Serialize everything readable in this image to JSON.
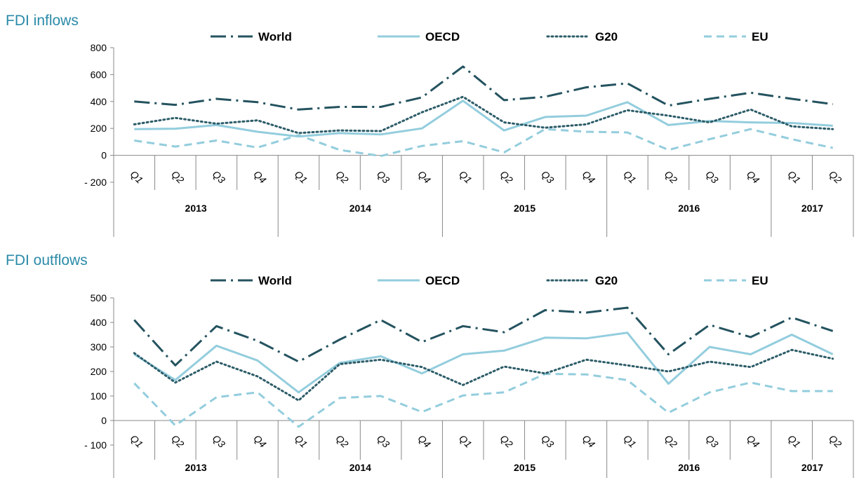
{
  "chart_data": [
    {
      "type": "line",
      "title": "FDI inflows",
      "xlabel": "",
      "ylabel": "",
      "ylim": [
        -200,
        800
      ],
      "yticks": [
        800,
        600,
        400,
        200,
        0,
        -200
      ],
      "ytick_labels": [
        "800",
        "600",
        "400",
        "200",
        "0",
        "- 200"
      ],
      "grid": false,
      "legend_position": "top",
      "categories": [
        "Q1",
        "Q2",
        "Q3",
        "Q4",
        "Q1",
        "Q2",
        "Q3",
        "Q4",
        "Q1",
        "Q2",
        "Q3",
        "Q4",
        "Q1",
        "Q2",
        "Q3",
        "Q4",
        "Q1",
        "Q2"
      ],
      "groups": [
        {
          "label": "2013",
          "count": 4
        },
        {
          "label": "2014",
          "count": 4
        },
        {
          "label": "2015",
          "count": 4
        },
        {
          "label": "2016",
          "count": 4
        },
        {
          "label": "2017",
          "count": 2
        }
      ],
      "series": [
        {
          "name": "World",
          "color": "#24535f",
          "style": "dash-dot",
          "values": [
            400,
            375,
            420,
            395,
            340,
            360,
            360,
            430,
            660,
            410,
            435,
            505,
            535,
            370,
            420,
            465,
            420,
            380
          ]
        },
        {
          "name": "OECD",
          "color": "#93cddd",
          "style": "solid",
          "values": [
            195,
            198,
            225,
            175,
            140,
            165,
            155,
            200,
            405,
            185,
            285,
            295,
            395,
            225,
            255,
            245,
            240,
            220
          ]
        },
        {
          "name": "G20",
          "color": "#2c5c68",
          "style": "dotted",
          "values": [
            230,
            278,
            235,
            260,
            165,
            185,
            180,
            320,
            435,
            245,
            205,
            230,
            335,
            295,
            245,
            340,
            215,
            195
          ]
        },
        {
          "name": "EU",
          "color": "#93cddd",
          "style": "dashed",
          "values": [
            110,
            65,
            110,
            58,
            150,
            40,
            -5,
            70,
            105,
            22,
            195,
            175,
            170,
            40,
            120,
            195,
            120,
            55
          ]
        }
      ]
    },
    {
      "type": "line",
      "title": "FDI outflows",
      "xlabel": "",
      "ylabel": "",
      "ylim": [
        -100,
        500
      ],
      "yticks": [
        500,
        400,
        300,
        200,
        100,
        0,
        -100
      ],
      "ytick_labels": [
        "500",
        "400",
        "300",
        "200",
        "100",
        "0",
        "- 100"
      ],
      "grid": false,
      "legend_position": "top",
      "categories": [
        "Q1",
        "Q2",
        "Q3",
        "Q4",
        "Q1",
        "Q2",
        "Q3",
        "Q4",
        "Q1",
        "Q2",
        "Q3",
        "Q4",
        "Q1",
        "Q2",
        "Q3",
        "Q4",
        "Q1",
        "Q2"
      ],
      "groups": [
        {
          "label": "2013",
          "count": 4
        },
        {
          "label": "2014",
          "count": 4
        },
        {
          "label": "2015",
          "count": 4
        },
        {
          "label": "2016",
          "count": 4
        },
        {
          "label": "2017",
          "count": 2
        }
      ],
      "series": [
        {
          "name": "World",
          "color": "#24535f",
          "style": "dash-dot",
          "values": [
            410,
            225,
            385,
            325,
            240,
            330,
            410,
            320,
            385,
            360,
            450,
            440,
            460,
            270,
            390,
            340,
            420,
            365
          ]
        },
        {
          "name": "OECD",
          "color": "#93cddd",
          "style": "solid",
          "values": [
            270,
            165,
            305,
            245,
            115,
            235,
            262,
            192,
            270,
            285,
            338,
            335,
            358,
            150,
            300,
            270,
            350,
            270
          ]
        },
        {
          "name": "G20",
          "color": "#2c5c68",
          "style": "dotted",
          "values": [
            275,
            155,
            240,
            180,
            82,
            230,
            248,
            218,
            145,
            220,
            192,
            248,
            225,
            200,
            240,
            218,
            288,
            252
          ]
        },
        {
          "name": "EU",
          "color": "#93cddd",
          "style": "dashed",
          "values": [
            152,
            -20,
            95,
            115,
            -25,
            92,
            100,
            35,
            102,
            115,
            190,
            188,
            165,
            32,
            115,
            155,
            120,
            120
          ]
        }
      ]
    }
  ]
}
